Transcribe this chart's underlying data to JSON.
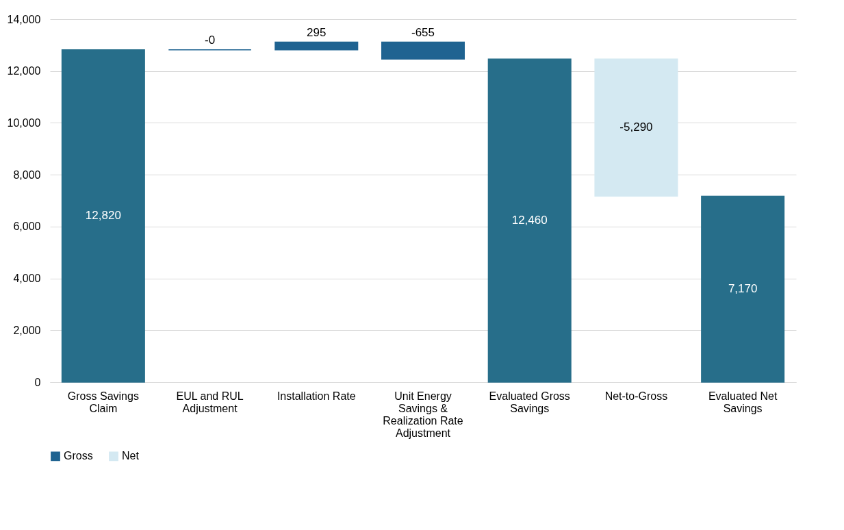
{
  "chart_data": {
    "type": "bar",
    "categories": [
      "Gross Savings Claim",
      "EUL and RUL Adjustment",
      "Installation Rate",
      "Unit Energy Savings & Realization Rate Adjustment",
      "Evaluated Gross Savings",
      "Net-to-Gross",
      "Evaluated Net Savings"
    ],
    "series": [
      {
        "name": "Gross",
        "color": "#1f6391",
        "colors": [
          "#276e8a",
          "#1f6391",
          "#1f6391",
          "#1f6391",
          "#276e8a",
          null,
          "#276e8a"
        ],
        "base": [
          0,
          12820,
          12820,
          13115,
          0,
          null,
          0
        ],
        "values": [
          12820,
          0,
          295,
          -655,
          12460,
          null,
          7170
        ],
        "value_labels": [
          "12,820",
          "-0",
          "295",
          "-655",
          "12,460",
          null,
          "7,170"
        ]
      },
      {
        "name": "Net",
        "color": "#d4e9f2",
        "colors": [
          null,
          null,
          null,
          null,
          null,
          "#d4e9f2",
          null
        ],
        "base": [
          null,
          null,
          null,
          null,
          null,
          12460,
          null
        ],
        "values": [
          null,
          null,
          null,
          null,
          null,
          -5290,
          null
        ],
        "value_labels": [
          null,
          null,
          null,
          null,
          null,
          "-5,290",
          null
        ]
      }
    ],
    "ylim": [
      0,
      14000
    ],
    "yticks": [
      0,
      {
        "value": 2000,
        "label": "2,000"
      },
      {
        "value": 4000,
        "label": "4,000"
      },
      {
        "value": 6000,
        "label": "6,000"
      },
      {
        "value": 8000,
        "label": "8,000"
      },
      {
        "value": 10000,
        "label": "10,000"
      },
      {
        "value": 12000,
        "label": "12,000"
      },
      {
        "value": 14000,
        "label": "14,000"
      }
    ],
    "grid": "y",
    "legend": "bottom"
  }
}
